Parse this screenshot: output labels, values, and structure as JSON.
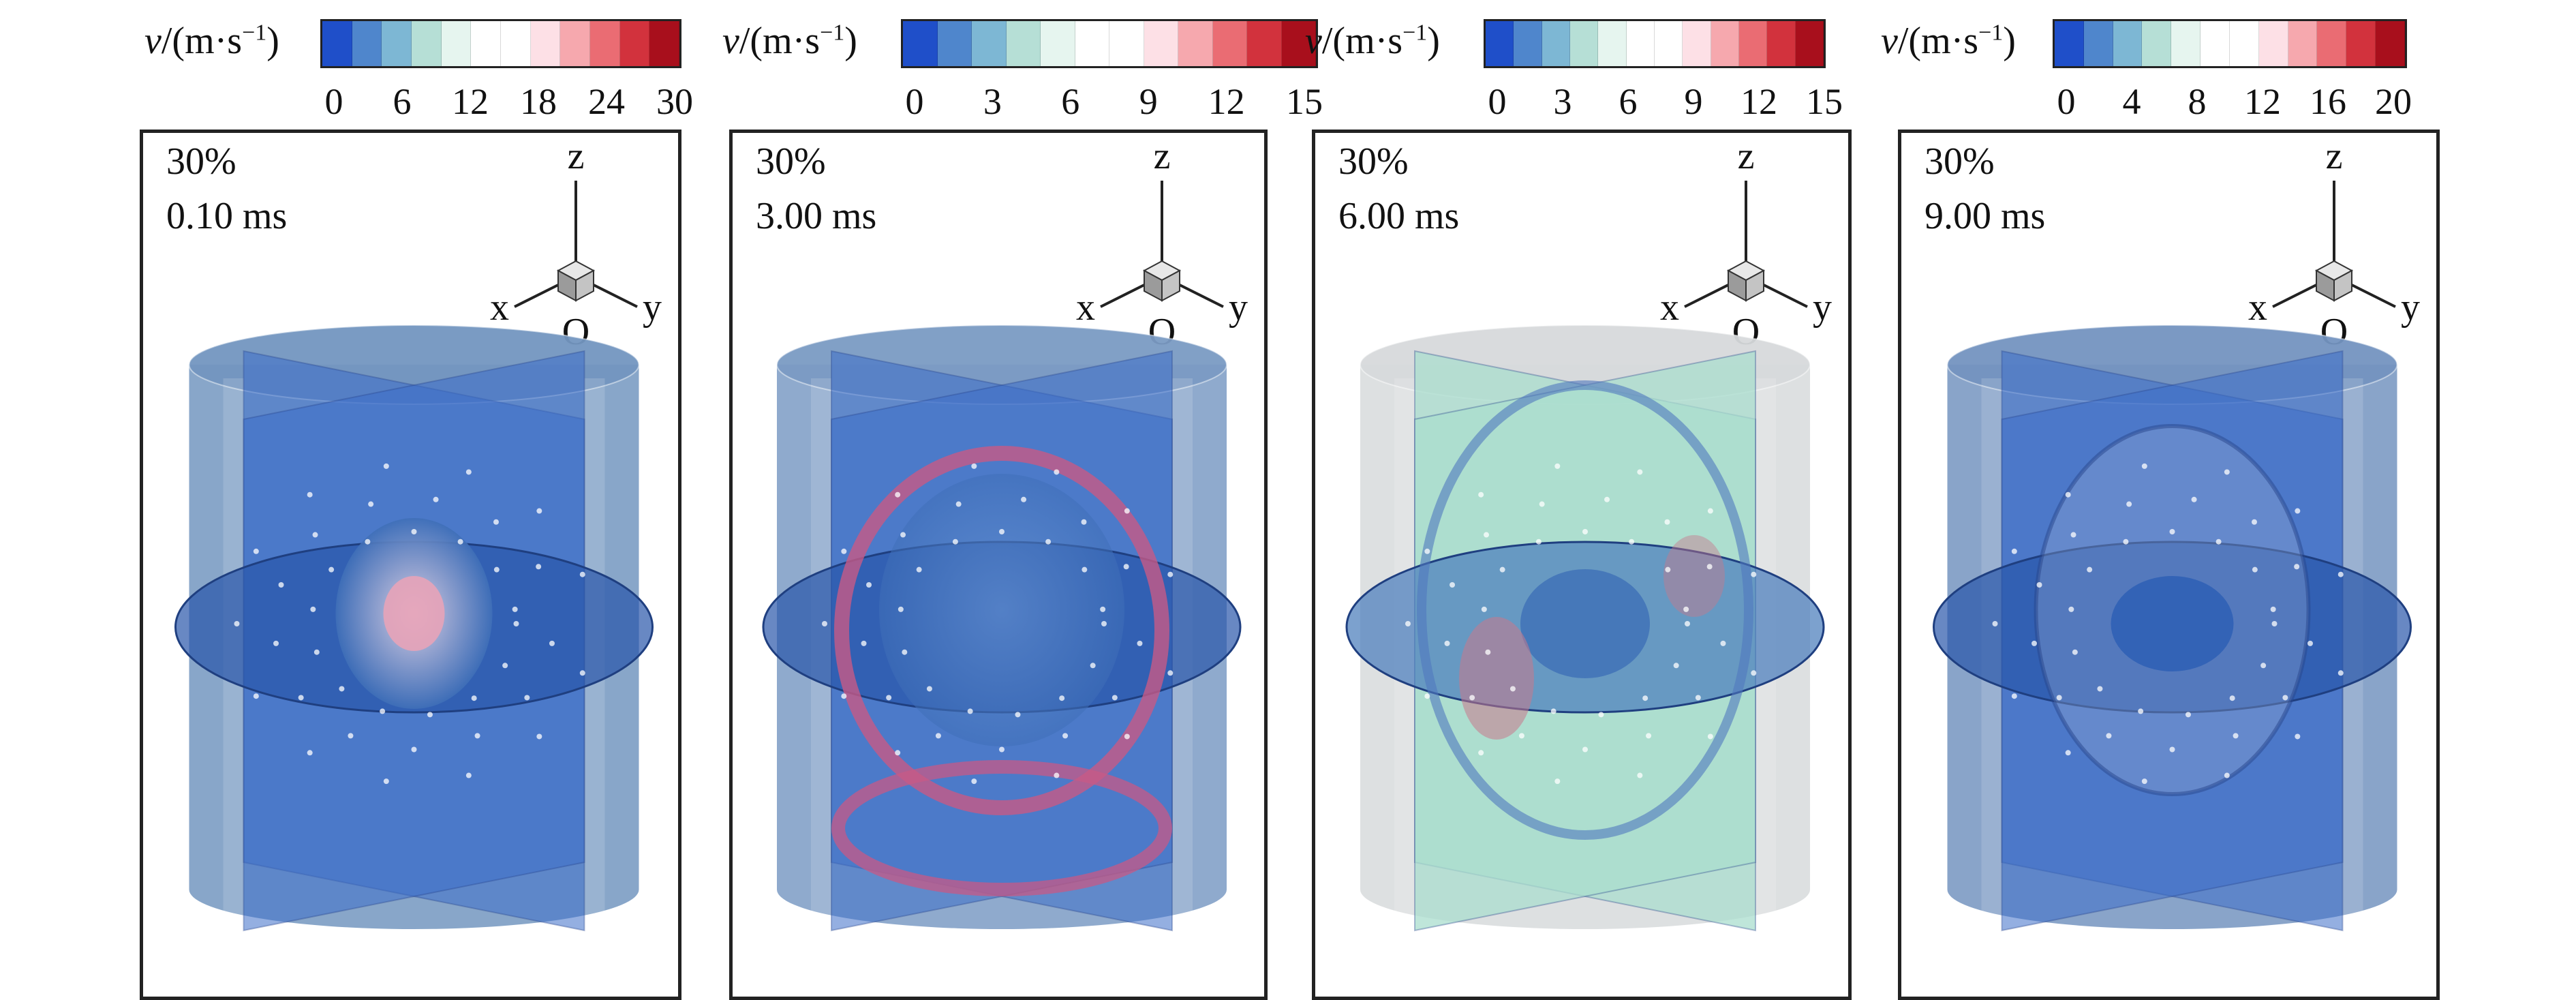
{
  "colorbar": {
    "var": "v",
    "unit": "/(m·s",
    "exp": "−1",
    "close": ")",
    "colors": [
      "#1f4fc9",
      "#4f86cc",
      "#7db7d4",
      "#b6dfd6",
      "#e6f5ef",
      "#ffffff",
      "#ffffff",
      "#fde0e6",
      "#f6a8ae",
      "#ea6c73",
      "#d2323d",
      "#a80f1c"
    ]
  },
  "axes": {
    "z": "z",
    "x": "x",
    "y": "y",
    "o": "O"
  },
  "panels": [
    {
      "fill": "30%",
      "time": "0.10 ms",
      "ticks": [
        "0",
        "6",
        "12",
        "18",
        "24",
        "30"
      ],
      "style": "blue",
      "shell": "#7396c0"
    },
    {
      "fill": "30%",
      "time": "3.00 ms",
      "ticks": [
        "0",
        "3",
        "6",
        "9",
        "12",
        "15"
      ],
      "style": "ring",
      "shell": "#7b9bc4"
    },
    {
      "fill": "30%",
      "time": "6.00 ms",
      "ticks": [
        "0",
        "3",
        "6",
        "9",
        "12",
        "15"
      ],
      "style": "green",
      "shell": "#d7dadc"
    },
    {
      "fill": "30%",
      "time": "9.00 ms",
      "ticks": [
        "0",
        "4",
        "8",
        "12",
        "16",
        "20"
      ],
      "style": "deep",
      "shell": "#7494c0"
    }
  ]
}
